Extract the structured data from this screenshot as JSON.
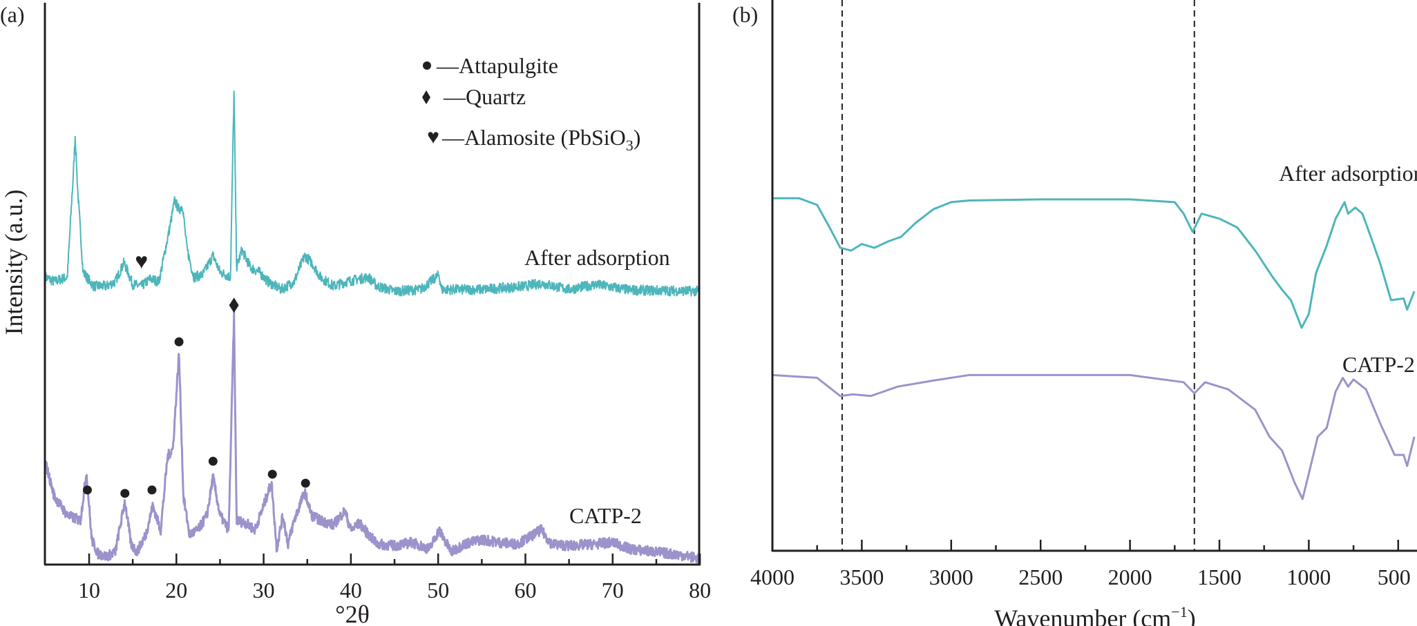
{
  "colors": {
    "after_adsorption": "#4cb6bb",
    "catp2": "#9b93cb",
    "axis": "#231f20"
  },
  "chart_data": [
    {
      "panel_label": "(a)",
      "type": "line",
      "xlabel": "°2θ",
      "ylabel": "Intensity (a.u.)",
      "xlim": [
        5,
        80
      ],
      "ylim": [
        0,
        100
      ],
      "xticks": [
        10,
        20,
        30,
        40,
        50,
        60,
        70,
        80
      ],
      "grid": false,
      "legend": {
        "placement": "top-right",
        "entries": [
          {
            "symbol": "circle",
            "label": "—Attapulgite"
          },
          {
            "symbol": "diamond",
            "label": "—Quartz"
          },
          {
            "symbol": "heart",
            "label": "—Alamosite (PbSiO",
            "subscript": "3",
            "suffix": ")"
          }
        ]
      },
      "series": [
        {
          "name": "After adsorption",
          "color": "#4cb6bb",
          "x": [
            5,
            6,
            7.5,
            8.2,
            8.4,
            8.7,
            9.3,
            10.5,
            12,
            13,
            14,
            15,
            16,
            17,
            18,
            19.2,
            19.8,
            20.3,
            20.7,
            21.2,
            22,
            23,
            24.2,
            25,
            26.2,
            26.6,
            26.9,
            27.5,
            28.5,
            29.5,
            30.5,
            32,
            33.5,
            34.7,
            35.5,
            36.5,
            38,
            39.5,
            42,
            43,
            45,
            48,
            50.1,
            50.4,
            55,
            60,
            61.8,
            65,
            68,
            72,
            80
          ],
          "y": [
            50.8,
            50,
            50.8,
            69.5,
            75.9,
            66.1,
            51.7,
            49.2,
            49.2,
            50,
            53.4,
            49.5,
            49.2,
            50.5,
            50,
            59.3,
            64.4,
            62.7,
            63.6,
            55.9,
            50.8,
            51.2,
            54.6,
            51.7,
            50.8,
            83.6,
            52.5,
            55.6,
            52.5,
            51.7,
            50,
            48.6,
            50,
            54.6,
            53.4,
            50.8,
            49.2,
            50,
            50.8,
            49.2,
            48.3,
            48.6,
            51.2,
            48.6,
            48.6,
            49.2,
            49.7,
            48.6,
            49.5,
            48.5,
            48.3
          ]
        },
        {
          "name": "CATP-2",
          "color": "#9b93cb",
          "x": [
            5,
            6,
            7.5,
            9,
            9.7,
            10.3,
            11,
            12,
            13,
            14.1,
            14.8,
            15.5,
            16.5,
            17.3,
            18.2,
            19,
            19.6,
            20.3,
            20.8,
            21.5,
            22.5,
            23.5,
            24.2,
            25,
            26,
            26.6,
            26.9,
            28,
            29,
            30,
            30.9,
            31.5,
            32.2,
            32.8,
            33.5,
            34.7,
            35.5,
            36.5,
            38,
            39.3,
            40,
            41,
            42,
            43,
            45,
            47,
            49,
            50.1,
            51.5,
            53,
            55,
            57,
            59,
            60,
            61.8,
            63,
            65,
            68,
            70,
            72,
            75,
            78,
            80
          ],
          "y": [
            17.8,
            11.9,
            8.5,
            7.6,
            16.1,
            4.2,
            1.7,
            1.2,
            2,
            11,
            3.4,
            2,
            5.1,
            10.2,
            5.9,
            19,
            20.3,
            37.3,
            11.9,
            5.1,
            5.9,
            8.5,
            15.3,
            8.5,
            5.9,
            43.7,
            7.6,
            7.1,
            5.9,
            10.2,
            14.4,
            2.5,
            8.5,
            3.4,
            7.6,
            12.7,
            8.5,
            7.6,
            6.8,
            9.3,
            5.9,
            7.1,
            5.1,
            3.4,
            3.1,
            3.7,
            2.5,
            5.9,
            2,
            3.4,
            4.2,
            3.7,
            3.4,
            4.2,
            5.9,
            3.4,
            3.1,
            3.4,
            3.7,
            2.5,
            2,
            1.4,
            0.8
          ]
        }
      ],
      "markers": [
        {
          "symbol": "circle",
          "x": 9.8,
          "y": 13
        },
        {
          "symbol": "circle",
          "x": 14.1,
          "y": 12.4
        },
        {
          "symbol": "circle",
          "x": 17.2,
          "y": 13
        },
        {
          "symbol": "circle",
          "x": 20.3,
          "y": 39.3
        },
        {
          "symbol": "circle",
          "x": 24.2,
          "y": 18.1
        },
        {
          "symbol": "circle",
          "x": 31.0,
          "y": 15.8
        },
        {
          "symbol": "circle",
          "x": 34.8,
          "y": 14.2
        },
        {
          "symbol": "diamond",
          "x": 26.6,
          "y": 45.8
        },
        {
          "symbol": "heart",
          "x": 16.0,
          "y": 53.7
        }
      ]
    },
    {
      "panel_label": "(b)",
      "type": "line",
      "xlabel": "Wavenumber (cm",
      "xlabel_sup": "−1",
      "xlabel_suffix": ")",
      "xlim": [
        4000,
        400
      ],
      "ylim": [
        0,
        100
      ],
      "xticks": [
        4000,
        3500,
        3000,
        2500,
        2000,
        1500,
        1000,
        500
      ],
      "reference_lines": [
        3610,
        1640
      ],
      "grid": false,
      "series": [
        {
          "name": "After adsorption",
          "color": "#4cb6bb",
          "x": [
            4000,
            3850,
            3750,
            3680,
            3620,
            3560,
            3500,
            3430,
            3350,
            3280,
            3200,
            3100,
            3000,
            2900,
            2500,
            2000,
            1750,
            1700,
            1650,
            1600,
            1500,
            1400,
            1300,
            1200,
            1150,
            1100,
            1040,
            1000,
            960,
            900,
            850,
            800,
            780,
            740,
            700,
            650,
            600,
            540,
            470,
            450,
            410
          ],
          "y": [
            64,
            64,
            62.8,
            58.7,
            55,
            54.5,
            55.7,
            55,
            56.2,
            57,
            59.5,
            62,
            63.3,
            63.6,
            63.8,
            63.8,
            63.3,
            61.2,
            57.9,
            61.2,
            60.3,
            58.7,
            54.5,
            49.6,
            47.4,
            45.5,
            40.5,
            43,
            50.4,
            55.4,
            60.3,
            63.3,
            61.2,
            62.3,
            61.2,
            56.7,
            52.1,
            45.5,
            45.8,
            43.8,
            47.1
          ]
        },
        {
          "name": "CATP-2",
          "color": "#9b93cb",
          "x": [
            4000,
            3750,
            3620,
            3550,
            3450,
            3300,
            3100,
            2900,
            2000,
            1700,
            1640,
            1580,
            1450,
            1300,
            1220,
            1150,
            1080,
            1035,
            1000,
            950,
            900,
            850,
            810,
            780,
            750,
            680,
            600,
            520,
            470,
            450,
            410
          ],
          "y": [
            31.9,
            31.4,
            28.1,
            28.4,
            28.1,
            29.8,
            30.9,
            31.9,
            31.9,
            30.6,
            28.6,
            30.6,
            29.3,
            25.6,
            20.7,
            18.2,
            12.4,
            9.4,
            14,
            20.7,
            22.3,
            28.9,
            31.4,
            29.8,
            31.1,
            29.3,
            23.1,
            17.4,
            17.4,
            15.4,
            20.7
          ]
        }
      ]
    }
  ]
}
